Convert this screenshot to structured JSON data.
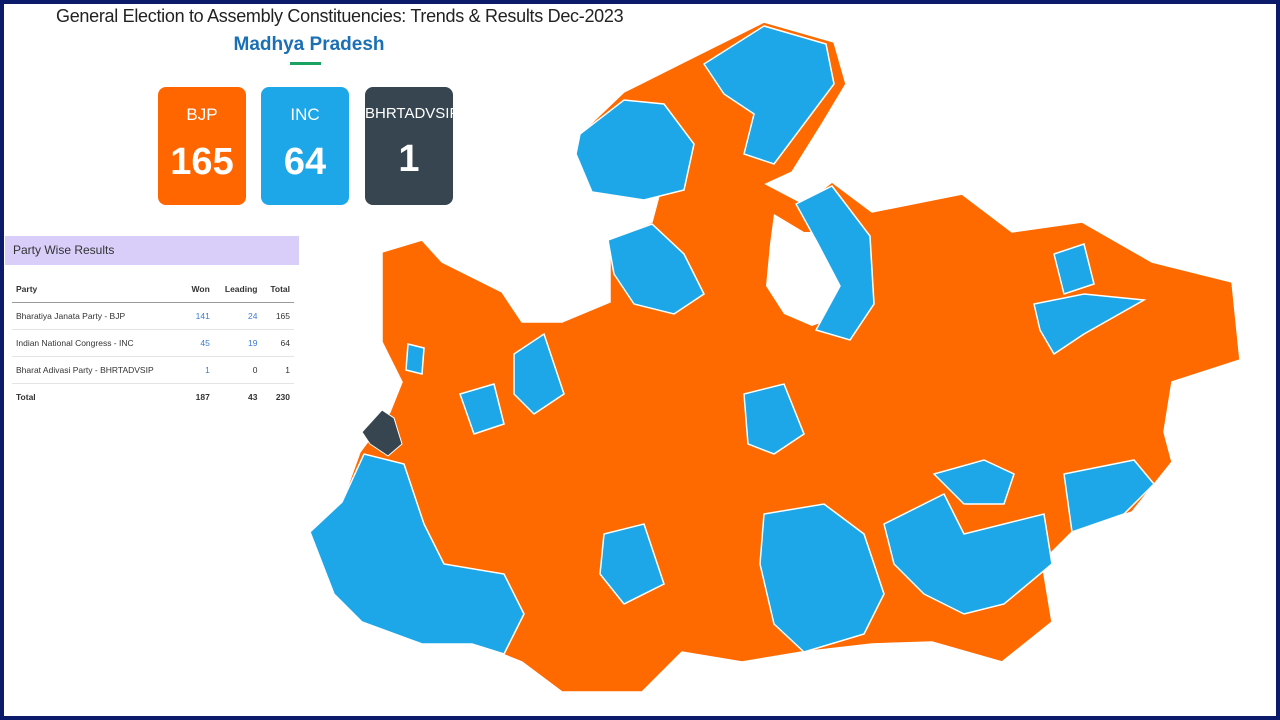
{
  "header": {
    "title": "General Election to Assembly Constituencies: Trends & Results Dec-2023",
    "state": "Madhya Pradesh"
  },
  "cards": [
    {
      "party": "BJP",
      "seats": 165
    },
    {
      "party": "INC",
      "seats": 64
    },
    {
      "party": "BHRTADVSIP",
      "seats": 1
    }
  ],
  "table": {
    "title": "Party Wise Results",
    "columns": [
      "Party",
      "Won",
      "Leading",
      "Total"
    ],
    "rows": [
      [
        "Bharatiya Janata Party - BJP",
        141,
        24,
        165
      ],
      [
        "Indian National Congress - INC",
        45,
        19,
        64
      ],
      [
        "Bharat Adivasi Party - BHRTADVSIP",
        1,
        0,
        1
      ],
      [
        "Total",
        187,
        43,
        230
      ]
    ]
  }
}
